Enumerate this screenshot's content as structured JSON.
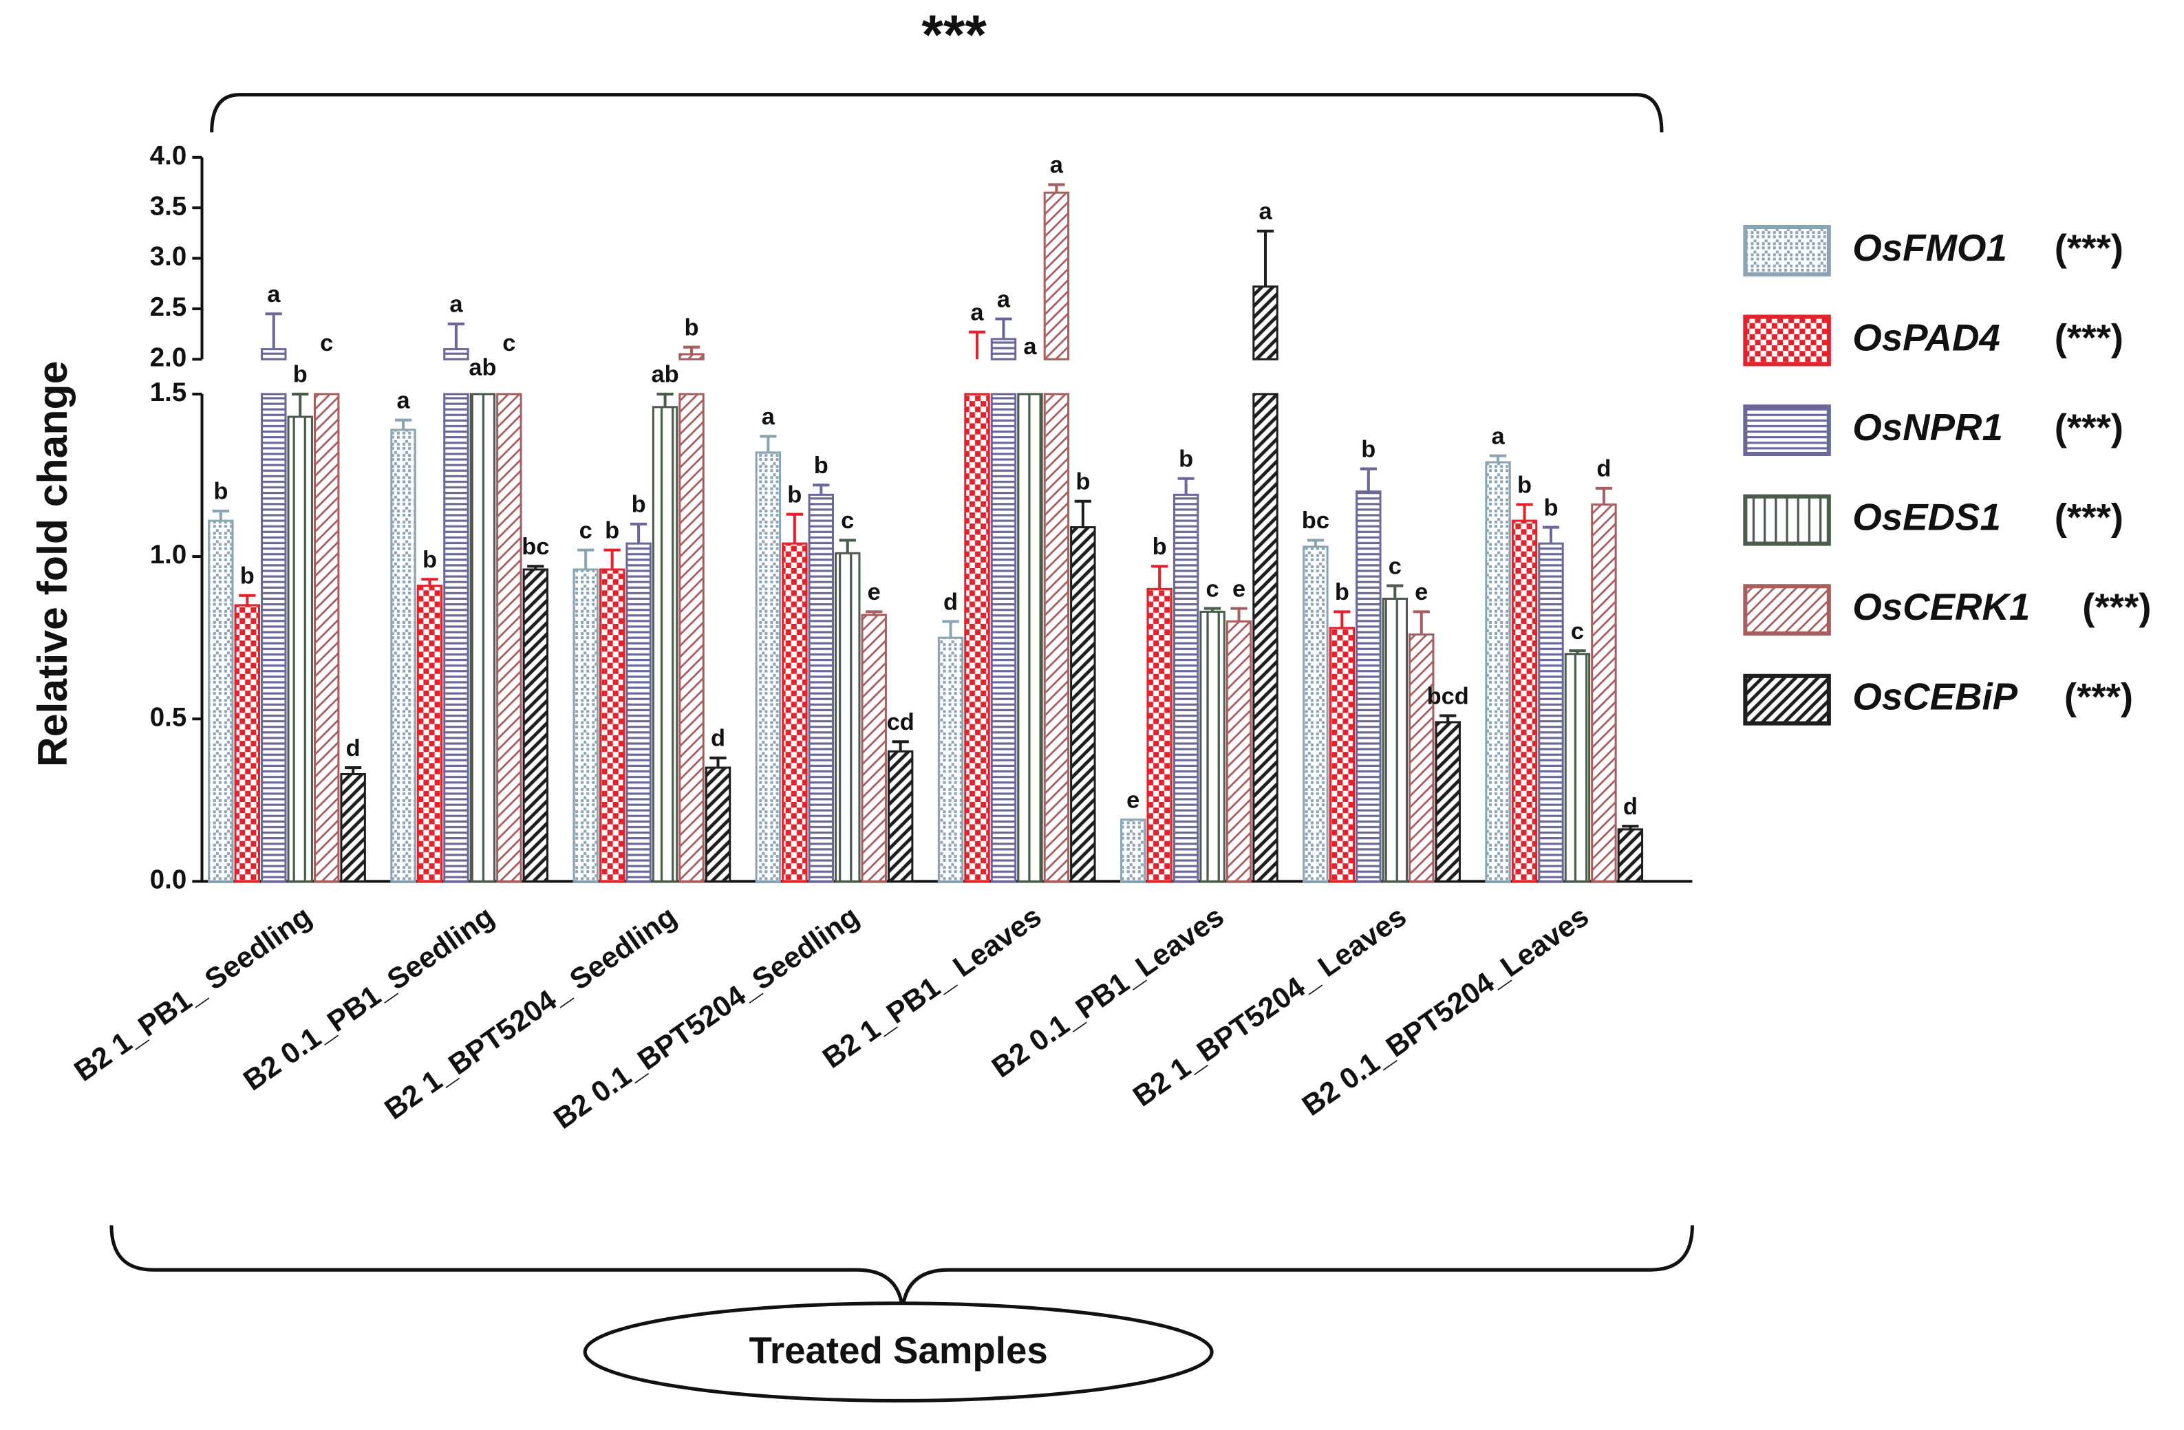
{
  "chart_data": {
    "type": "bar",
    "annotation": "***",
    "ylabel": "Relative fold change",
    "xlabel": "Treated Samples",
    "categories": [
      "B2 1_PB1_ Seedling",
      "B2 0.1_PB1_Seedling",
      "B2 1_BPT5204_ Seedling",
      "B2 0.1_BPT5204_Seedling",
      "B2 1_PB1_ Leaves",
      "B2 0.1_PB1_Leaves",
      "B2 1_BPT5204_ Leaves",
      "B2 0.1_BPT5204_Leaves"
    ],
    "ylim": [
      0,
      4.0
    ],
    "ybreak": [
      1.5,
      2.0
    ],
    "yticks": [
      {
        "value": 0,
        "label": "0.0"
      },
      {
        "value": 0.5,
        "label": "0.5"
      },
      {
        "value": 1,
        "label": "1.0"
      },
      {
        "value": 1.5,
        "label": "1.5"
      },
      {
        "value": 2,
        "label": "2.0"
      },
      {
        "value": 2.5,
        "label": "2.5"
      },
      {
        "value": 3,
        "label": "3.0"
      },
      {
        "value": 3.5,
        "label": "3.5"
      },
      {
        "value": 4,
        "label": "4.0"
      }
    ],
    "series": [
      {
        "name": "OsFMO1",
        "significance": "(***)",
        "color": "#8aa4b4",
        "pattern": "dots",
        "values": [
          1.11,
          1.39,
          0.96,
          1.32,
          0.75,
          0.19,
          1.03,
          1.29
        ],
        "errors": [
          0.03,
          0.03,
          0.06,
          0.05,
          0.05,
          0,
          0.02,
          0.02
        ],
        "labels": [
          "b",
          "a",
          "c",
          "a",
          "d",
          "e",
          "bc",
          "a"
        ]
      },
      {
        "name": "OsPAD4",
        "significance": "(***)",
        "color": "#e3222b",
        "pattern": "checker",
        "values": [
          0.85,
          0.91,
          0.96,
          1.04,
          2.0,
          0.9,
          0.78,
          1.11
        ],
        "errors": [
          0.03,
          0.02,
          0.06,
          0.09,
          0.27,
          0.07,
          0.05,
          0.05
        ],
        "labels": [
          "b",
          "b",
          "b",
          "b",
          "a",
          "b",
          "b",
          "b"
        ]
      },
      {
        "name": "OsNPR1",
        "significance": "(***)",
        "color": "#6a6898",
        "pattern": "hlines",
        "values": [
          2.1,
          2.1,
          1.04,
          1.19,
          2.2,
          1.19,
          1.2,
          1.04
        ],
        "errors": [
          0.35,
          0.25,
          0.06,
          0.03,
          0.2,
          0.05,
          0.07,
          0.05
        ],
        "labels": [
          "a",
          "a",
          "b",
          "b",
          "a",
          "b",
          "b",
          "b"
        ]
      },
      {
        "name": "OsEDS1",
        "significance": "(***)",
        "color": "#4c5c4c",
        "pattern": "vlines",
        "values": [
          1.43,
          1.6,
          1.46,
          1.01,
          1.9,
          0.83,
          0.87,
          0.7
        ],
        "errors": [
          0.07,
          0,
          0.04,
          0.04,
          0,
          0.01,
          0.04,
          0.01
        ],
        "labels": [
          "b",
          "ab",
          "ab",
          "c",
          "a",
          "c",
          "c",
          "c"
        ]
      },
      {
        "name": "OsCERK1",
        "significance": "(***)",
        "color": "#a85e5e",
        "pattern": "diag",
        "values": [
          1.95,
          1.95,
          2.05,
          0.82,
          3.65,
          0.8,
          0.76,
          1.16
        ],
        "errors": [
          0,
          0,
          0.07,
          0.01,
          0.08,
          0.04,
          0.07,
          0.05
        ],
        "labels": [
          "c",
          "c",
          "b",
          "e",
          "a",
          "e",
          "e",
          "d"
        ]
      },
      {
        "name": "OsCEBiP",
        "significance": "(***)",
        "color": "#1e1e1e",
        "pattern": "diagb",
        "values": [
          0.33,
          0.96,
          0.35,
          0.4,
          1.09,
          2.72,
          0.49,
          0.16
        ],
        "errors": [
          0.02,
          0.01,
          0.03,
          0.03,
          0.08,
          0.55,
          0.02,
          0.01
        ],
        "labels": [
          "d",
          "bc",
          "d",
          "cd",
          "b",
          "a",
          "bcd",
          "d"
        ]
      }
    ]
  }
}
